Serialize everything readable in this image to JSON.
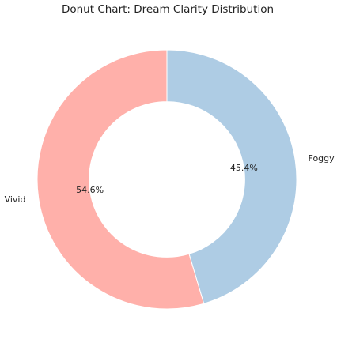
{
  "chart_data": {
    "type": "pie",
    "title": "Donut Chart: Dream Clarity Distribution",
    "categories": [
      "Vivid",
      "Foggy"
    ],
    "values": [
      54.6,
      45.4
    ],
    "value_labels": [
      "54.6%",
      "45.4%"
    ],
    "colors": [
      "#ffb0aa",
      "#aecce4"
    ],
    "start_angle": 90,
    "counterclockwise": true,
    "donut": true
  }
}
